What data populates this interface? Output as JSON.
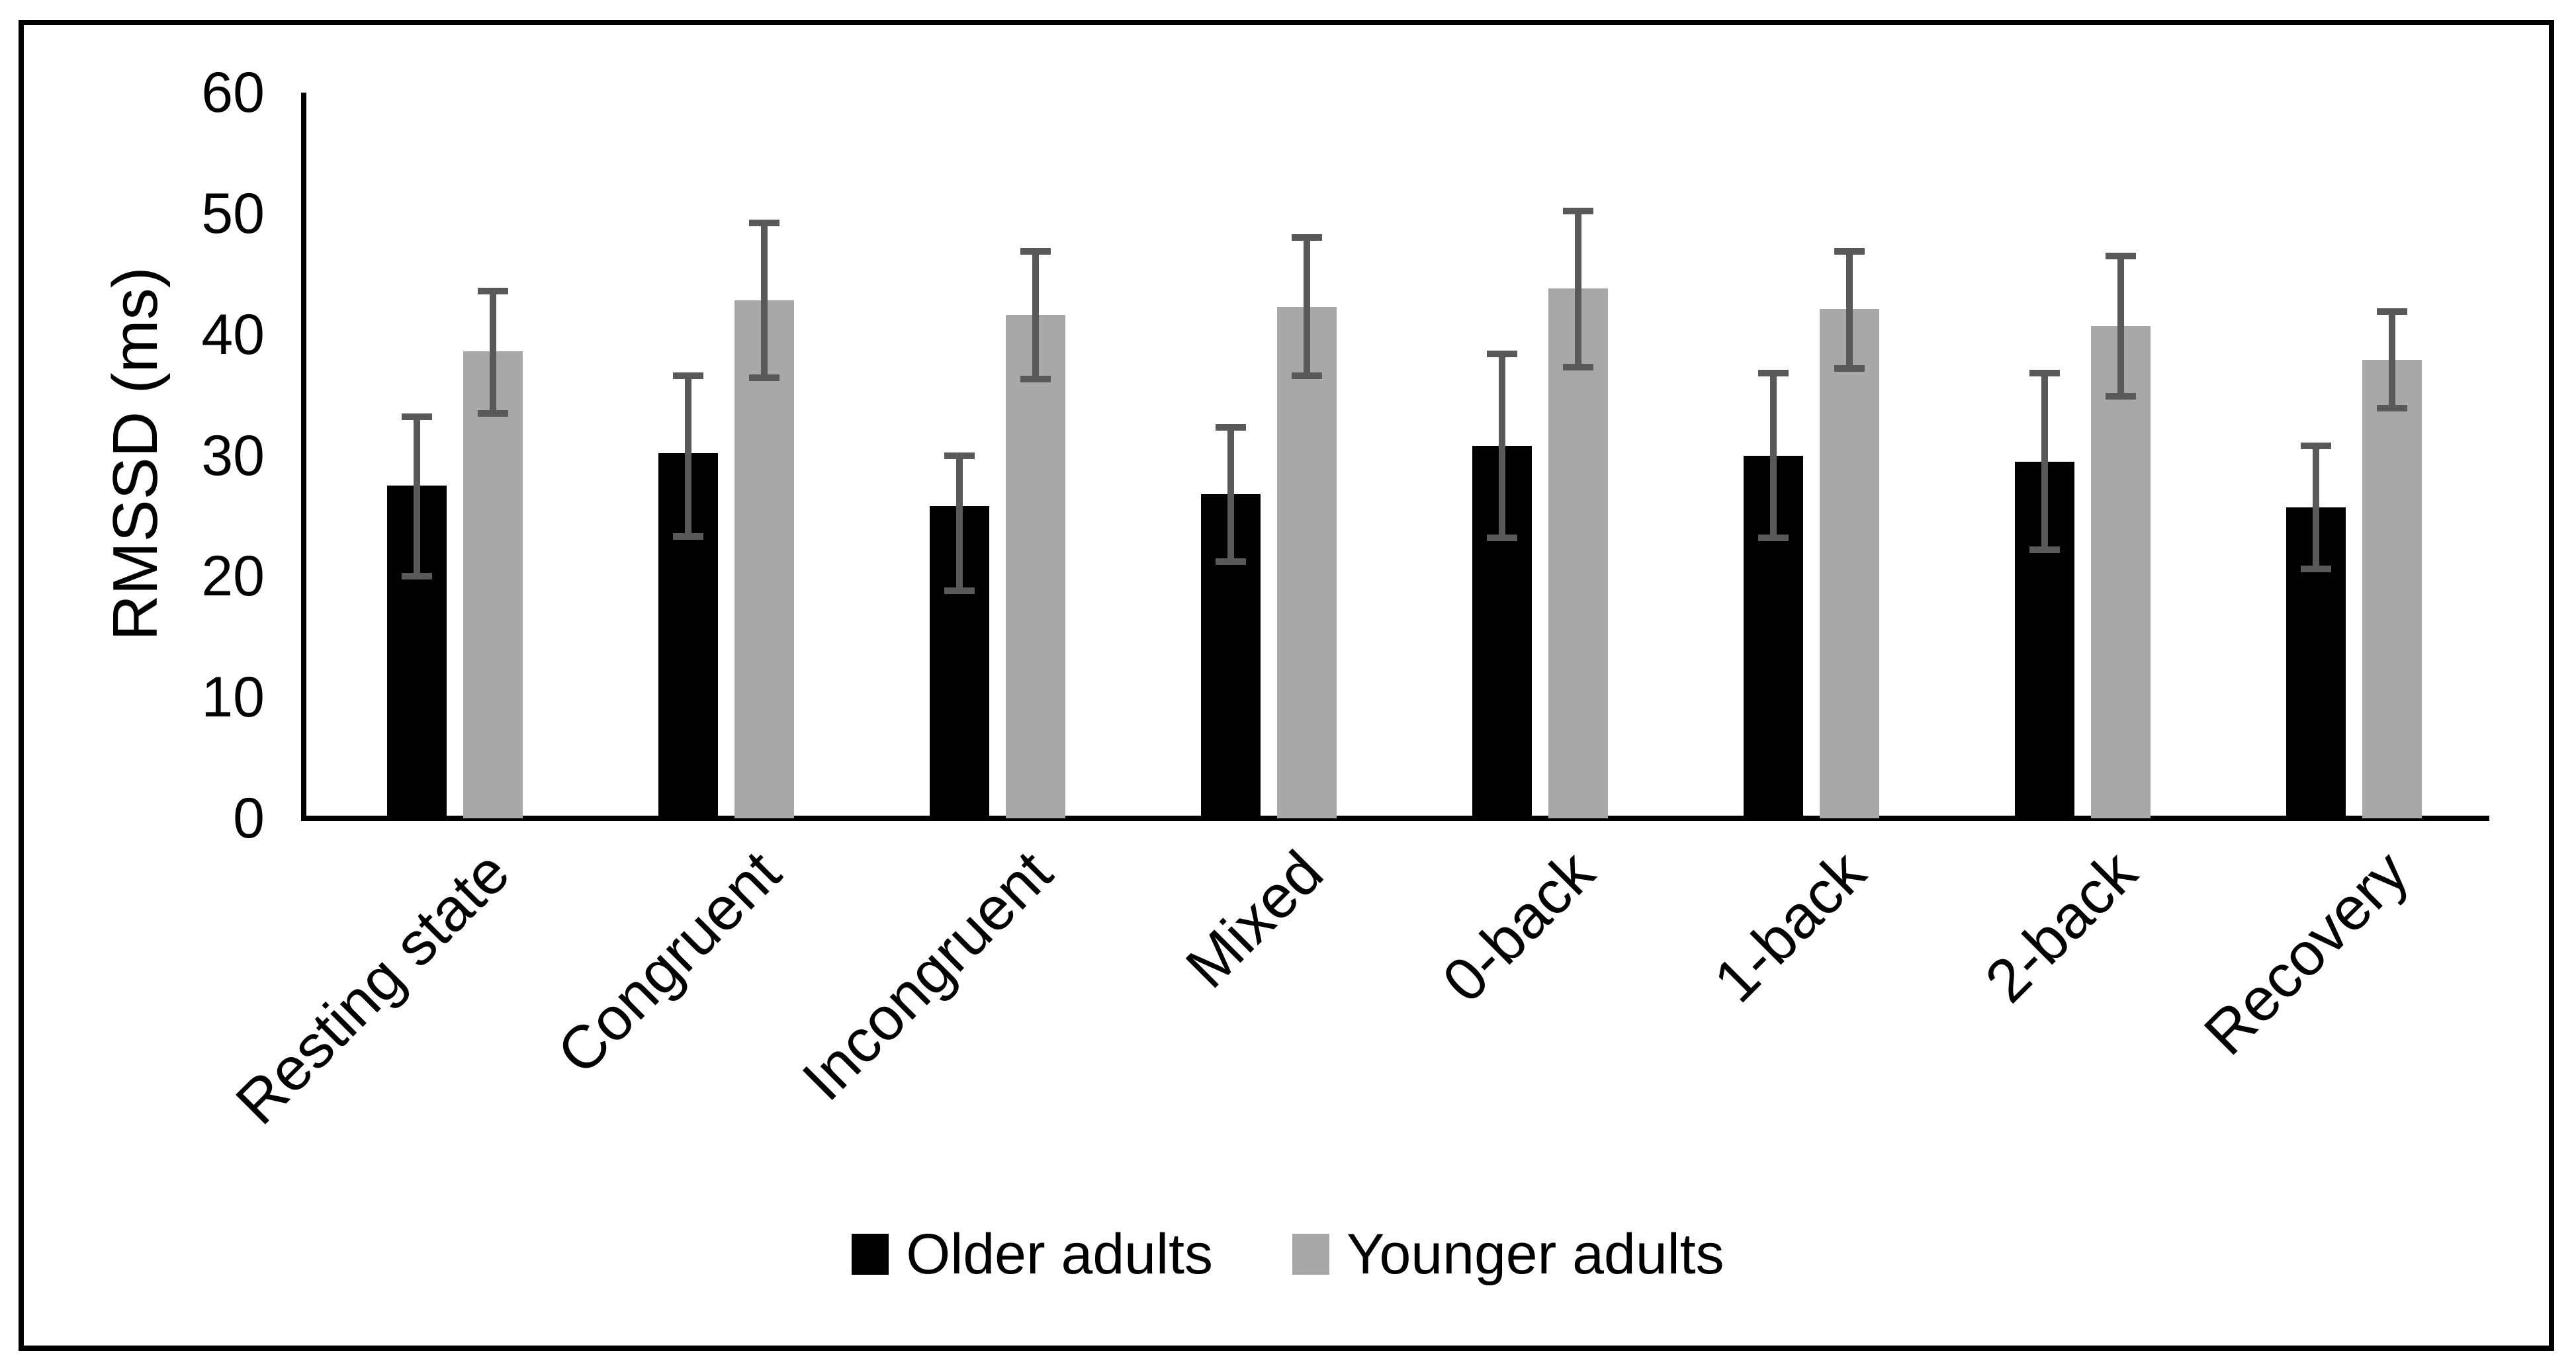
{
  "chart_data": {
    "type": "bar",
    "title": "",
    "xlabel": "",
    "ylabel": "RMSSD (ms)",
    "ylim": [
      0,
      60
    ],
    "yticks": [
      0,
      10,
      20,
      30,
      40,
      50,
      60
    ],
    "grid": false,
    "legend_position": "bottom",
    "categories": [
      "Resting state",
      "Congruent",
      "Incongruent",
      "Mixed",
      "0-back",
      "1-back",
      "2-back",
      "Recovery"
    ],
    "series": [
      {
        "name": "Older adults",
        "color": "#000000",
        "values": [
          27.5,
          30.2,
          25.8,
          26.8,
          30.8,
          30.0,
          29.5,
          25.7
        ],
        "error_low": [
          20.0,
          23.3,
          18.8,
          21.2,
          23.2,
          23.2,
          22.2,
          20.6
        ],
        "error_high": [
          33.2,
          36.6,
          30.0,
          32.3,
          38.4,
          36.8,
          36.8,
          30.8
        ]
      },
      {
        "name": "Younger adults",
        "color": "#a8a8a8",
        "values": [
          38.6,
          42.8,
          41.6,
          42.3,
          43.8,
          42.1,
          40.7,
          37.9
        ],
        "error_low": [
          33.5,
          36.4,
          36.3,
          36.6,
          37.3,
          37.2,
          34.9,
          33.9
        ],
        "error_high": [
          43.6,
          49.2,
          46.9,
          48.0,
          50.2,
          46.9,
          46.5,
          41.9
        ]
      }
    ],
    "error_bar_color": "#595959"
  }
}
